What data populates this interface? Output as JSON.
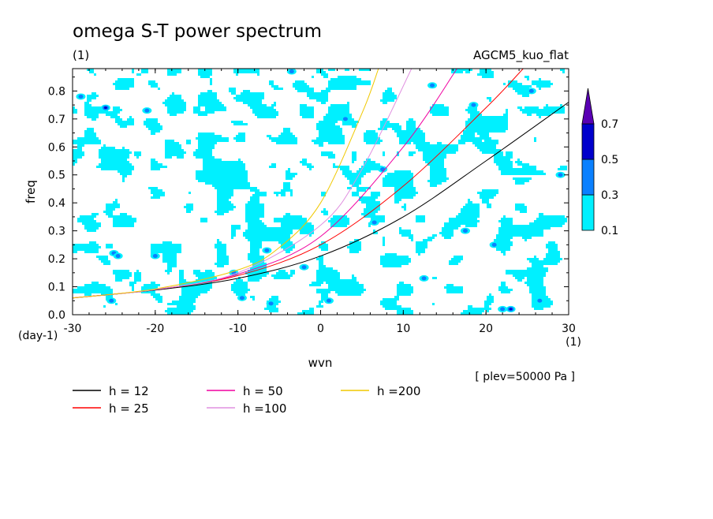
{
  "chart_data": {
    "type": "heatmap",
    "title": "omega S-T power spectrum",
    "subtitle_left": "(1)",
    "subtitle_right": "AGCM5_kuo_flat",
    "xlabel": "wvn",
    "ylabel": "freq",
    "x_unit": "(1)",
    "y_unit": "(day-1)",
    "annotation": "[ plev=50000 Pa ]",
    "xlim": [
      -30,
      30
    ],
    "ylim": [
      0,
      0.88
    ],
    "x_ticks": [
      -30,
      -20,
      -10,
      0,
      10,
      20,
      30
    ],
    "x_tick_labels": [
      "-30",
      "-20",
      "-10",
      "0",
      "10",
      "20",
      "30"
    ],
    "y_ticks": [
      0.0,
      0.1,
      0.2,
      0.3,
      0.4,
      0.5,
      0.6,
      0.7,
      0.8
    ],
    "y_tick_labels": [
      "0.0",
      "0.1",
      "0.2",
      "0.3",
      "0.4",
      "0.5",
      "0.6",
      "0.7",
      "0.8"
    ],
    "grid": false,
    "legend_position": "bottom",
    "colorbar": {
      "levels": [
        0.1,
        0.3,
        0.5,
        0.7
      ],
      "labels": [
        "0.1",
        "0.3",
        "0.5",
        "0.7"
      ],
      "colors": [
        "#00f0ff",
        "#0a80ff",
        "#0000cc",
        "#5a00b4"
      ],
      "extend": "max",
      "position": "right"
    },
    "series": [
      {
        "name": "h = 12",
        "color": "#000000",
        "equivalent_depth": 12,
        "x": [
          -30,
          -20,
          -10,
          0,
          10,
          20,
          30
        ],
        "y": [
          0.06,
          0.088,
          0.13,
          0.21,
          0.35,
          0.55,
          0.76
        ]
      },
      {
        "name": "h = 25",
        "color": "#ff0000",
        "equivalent_depth": 25,
        "x": [
          -30,
          -20,
          -10,
          0,
          10,
          20,
          24.5
        ],
        "y": [
          0.06,
          0.09,
          0.14,
          0.25,
          0.46,
          0.74,
          0.88
        ]
      },
      {
        "name": "h = 50",
        "color": "#f000a0",
        "equivalent_depth": 50,
        "x": [
          -30,
          -20,
          -10,
          0,
          10,
          16.5
        ],
        "y": [
          0.06,
          0.09,
          0.145,
          0.28,
          0.6,
          0.88
        ]
      },
      {
        "name": "h =100",
        "color": "#e090e0",
        "equivalent_depth": 100,
        "x": [
          -30,
          -20,
          -10,
          0,
          5,
          11
        ],
        "y": [
          0.06,
          0.09,
          0.15,
          0.32,
          0.52,
          0.88
        ]
      },
      {
        "name": "h =200",
        "color": "#f0c800",
        "equivalent_depth": 200,
        "x": [
          -30,
          -20,
          -10,
          -5,
          0,
          5,
          7
        ],
        "y": [
          0.06,
          0.092,
          0.16,
          0.24,
          0.4,
          0.72,
          0.88
        ]
      }
    ],
    "power_maxima": [
      {
        "level": 0.3,
        "x": -25.3,
        "y": 0.05
      },
      {
        "level": 0.3,
        "x": -25,
        "y": 0.22
      },
      {
        "level": 0.3,
        "x": -24.5,
        "y": 0.21
      },
      {
        "level": 0.3,
        "x": -20,
        "y": 0.21
      },
      {
        "level": 0.5,
        "x": -26,
        "y": 0.74
      },
      {
        "level": 0.3,
        "x": -21,
        "y": 0.73
      },
      {
        "level": 0.3,
        "x": -10.5,
        "y": 0.15
      },
      {
        "level": 0.3,
        "x": -9.5,
        "y": 0.06
      },
      {
        "level": 0.3,
        "x": -6,
        "y": 0.04
      },
      {
        "level": 0.3,
        "x": -6.5,
        "y": 0.23
      },
      {
        "level": 0.3,
        "x": -3.5,
        "y": 0.87
      },
      {
        "level": 0.3,
        "x": 1,
        "y": 0.05
      },
      {
        "level": 0.3,
        "x": 3,
        "y": 0.7
      },
      {
        "level": 0.3,
        "x": 7.5,
        "y": 0.52
      },
      {
        "level": 0.3,
        "x": 12.5,
        "y": 0.13
      },
      {
        "level": 0.3,
        "x": 13.5,
        "y": 0.82
      },
      {
        "level": 0.3,
        "x": 18.5,
        "y": 0.75
      },
      {
        "level": 0.3,
        "x": 21,
        "y": 0.25
      },
      {
        "level": 0.3,
        "x": 17.5,
        "y": 0.3
      },
      {
        "level": 0.3,
        "x": 22,
        "y": 0.02
      },
      {
        "level": 0.5,
        "x": 23,
        "y": 0.02
      },
      {
        "level": 0.3,
        "x": 25.5,
        "y": 0.8
      },
      {
        "level": 0.3,
        "x": 26.5,
        "y": 0.05
      },
      {
        "level": 0.3,
        "x": -29,
        "y": 0.78
      },
      {
        "level": 0.3,
        "x": 6.5,
        "y": 0.33
      },
      {
        "level": 0.3,
        "x": -2,
        "y": 0.17
      },
      {
        "level": 0.3,
        "x": 29,
        "y": 0.5
      }
    ]
  }
}
